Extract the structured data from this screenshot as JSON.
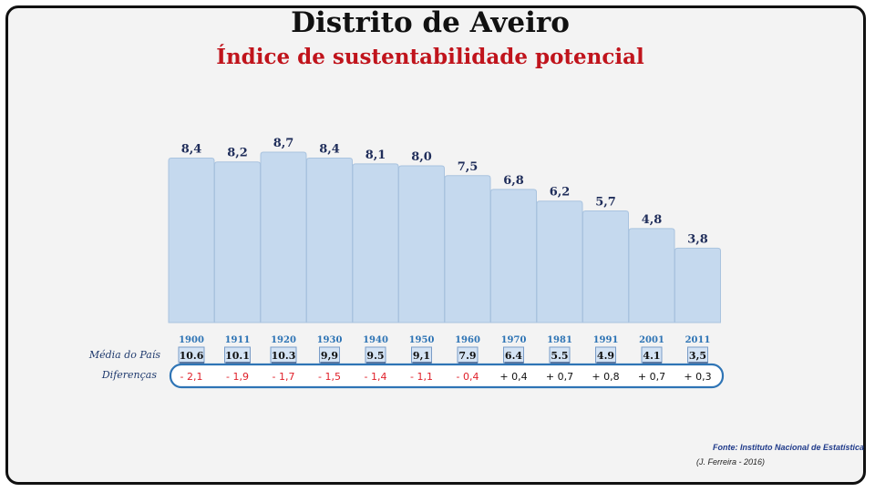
{
  "chart_data": {
    "type": "bar",
    "title": "Distrito de Aveiro",
    "subtitle": "Índice de sustentabilidade potencial",
    "categories": [
      "1900",
      "1911",
      "1920",
      "1930",
      "1940",
      "1950",
      "1960",
      "1970",
      "1981",
      "1991",
      "2001",
      "2011"
    ],
    "values": [
      8.4,
      8.2,
      8.7,
      8.4,
      8.1,
      8.0,
      7.5,
      6.8,
      6.2,
      5.7,
      4.8,
      3.8
    ],
    "value_labels": [
      "8,4",
      "8,2",
      "8,7",
      "8,4",
      "8,1",
      "8,0",
      "7,5",
      "6,8",
      "6,2",
      "5,7",
      "4,8",
      "3,8"
    ],
    "ylim": [
      0,
      8.7
    ],
    "national_average_label": "Média do País",
    "national_average_values": [
      10.6,
      10.1,
      10.3,
      9.9,
      9.5,
      9.1,
      7.9,
      6.4,
      5.5,
      4.9,
      4.1,
      3.5
    ],
    "national_average_labels": [
      "10.6",
      "10.1",
      "10.3",
      "9,9",
      "9.5",
      "9,1",
      "7.9",
      "6.4",
      "5.5",
      "4.9",
      "4.1",
      "3,5"
    ],
    "differences_label": "Diferenças",
    "differences_values": [
      -2.1,
      -1.9,
      -1.7,
      -1.5,
      -1.4,
      -1.1,
      -0.4,
      0.4,
      0.7,
      0.8,
      0.7,
      0.3
    ],
    "differences_labels": [
      "- 2,1",
      "- 1,9",
      "- 1,7",
      "- 1,5",
      "- 1,4",
      "- 1,1",
      "- 0,4",
      "+ 0,4",
      "+ 0,7",
      "+ 0,8",
      "+ 0,7",
      "+ 0,3"
    ],
    "colors": {
      "bar_fill": "#c5d9ee",
      "bar_stroke": "#a9c3df",
      "value_label": "#1f2d5a",
      "year_label": "#2e74b5",
      "negative": "#e0202a",
      "positive": "#111111",
      "pill_border": "#2e74b5"
    }
  },
  "source": "Fonte: Instituto Nacional de Estatística",
  "credit": "(J. Ferreira - 2016)"
}
